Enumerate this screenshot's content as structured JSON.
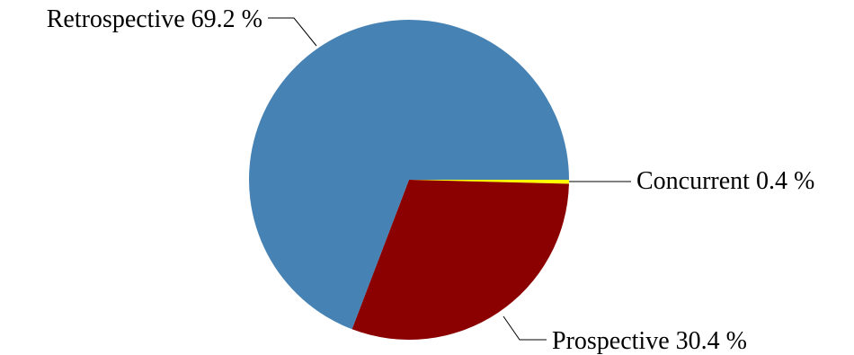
{
  "chart_data": {
    "type": "pie",
    "title": "",
    "slices": [
      {
        "name": "Concurrent",
        "value": 0.4,
        "label": "Concurrent  0.4 %",
        "color": "#ffff00"
      },
      {
        "name": "Prospective",
        "value": 30.4,
        "label": "Prospective  30.4 %",
        "color": "#8b0000"
      },
      {
        "name": "Retrospective",
        "value": 69.2,
        "label": "Retrospective  69.2 %",
        "color": "#4682b4"
      }
    ],
    "legend": "none",
    "labels": "outside with leader lines"
  }
}
